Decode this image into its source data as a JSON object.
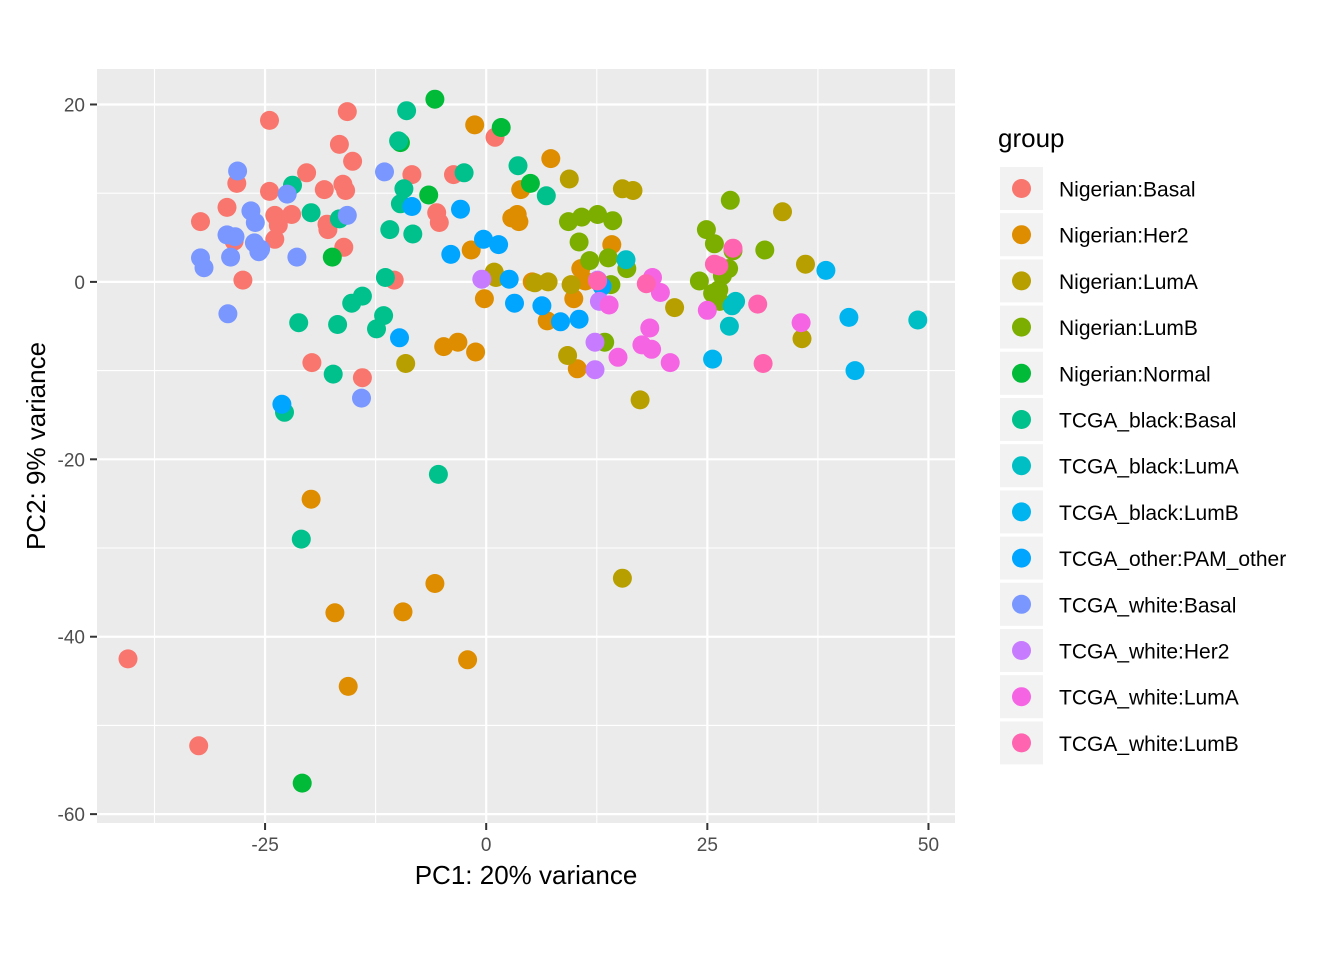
{
  "chart_data": {
    "type": "scatter",
    "xlabel": "PC1: 20% variance",
    "ylabel": "PC2: 9% variance",
    "xlim": [
      -44,
      53
    ],
    "ylim": [
      -61,
      24
    ],
    "x_ticks": [
      -25,
      0,
      25,
      50
    ],
    "x_tick_labels": [
      "-25",
      "0",
      "25",
      "50"
    ],
    "y_ticks": [
      -60,
      -40,
      -20,
      0,
      20
    ],
    "y_tick_labels": [
      "-60",
      "-40",
      "-20",
      "0",
      "20"
    ],
    "grid": true,
    "legend": {
      "title": "group",
      "position": "right"
    },
    "series": [
      {
        "name": "Nigerian:Basal",
        "color": "#F8766D",
        "points": [
          [
            -40.5,
            -42.5
          ],
          [
            -32.5,
            -52.3
          ],
          [
            -32.3,
            6.8
          ],
          [
            -29.3,
            8.4
          ],
          [
            -28.5,
            4.6
          ],
          [
            -28.2,
            11.1
          ],
          [
            -27.5,
            0.2
          ],
          [
            -24.5,
            18.2
          ],
          [
            -24.5,
            10.2
          ],
          [
            -23.9,
            4.8
          ],
          [
            -23.9,
            7.5
          ],
          [
            -23.5,
            6.4
          ],
          [
            -22,
            7.6
          ],
          [
            -20.3,
            12.3
          ],
          [
            -19.7,
            -9.1
          ],
          [
            -18.3,
            10.4
          ],
          [
            -18,
            6.5
          ],
          [
            -17.9,
            5.9
          ],
          [
            -16.6,
            15.5
          ],
          [
            -16.2,
            11
          ],
          [
            -16.1,
            3.9
          ],
          [
            -15.9,
            10.3
          ],
          [
            -15.7,
            19.2
          ],
          [
            -15.1,
            13.6
          ],
          [
            -14,
            -10.8
          ],
          [
            -10.4,
            0.2
          ],
          [
            -8.4,
            12.1
          ],
          [
            -5.6,
            7.8
          ],
          [
            -5.3,
            6.7
          ],
          [
            -3.7,
            12.1
          ],
          [
            1,
            16.3
          ]
        ]
      },
      {
        "name": "Nigerian:Her2",
        "color": "#DE8C00",
        "points": [
          [
            -19.8,
            -24.5
          ],
          [
            -17.1,
            -37.3
          ],
          [
            -15.6,
            -45.6
          ],
          [
            -9.4,
            -37.2
          ],
          [
            -5.8,
            -34
          ],
          [
            -4.8,
            -7.3
          ],
          [
            -3.2,
            -6.8
          ],
          [
            -2.1,
            -42.6
          ],
          [
            -1.7,
            3.6
          ],
          [
            -1.3,
            17.7
          ],
          [
            -1.2,
            -7.9
          ],
          [
            -0.2,
            -1.9
          ],
          [
            2.9,
            7.2
          ],
          [
            3.5,
            7.6
          ],
          [
            3.7,
            6.8
          ],
          [
            3.9,
            10.4
          ],
          [
            5.2,
            0
          ],
          [
            6.9,
            -4.4
          ],
          [
            7.3,
            13.9
          ],
          [
            9.9,
            -1.9
          ],
          [
            10.3,
            -9.8
          ],
          [
            10.7,
            1.5
          ],
          [
            11.2,
            0.1
          ],
          [
            14.2,
            4.2
          ]
        ]
      },
      {
        "name": "Nigerian:LumA",
        "color": "#B79F00",
        "points": [
          [
            -9.1,
            -9.2
          ],
          [
            0.9,
            1.1
          ],
          [
            1.1,
            0.5
          ],
          [
            5.5,
            -0.1
          ],
          [
            7,
            0
          ],
          [
            9.2,
            -8.3
          ],
          [
            9.4,
            11.6
          ],
          [
            9.6,
            -0.3
          ],
          [
            15.4,
            10.5
          ],
          [
            15.4,
            -33.4
          ],
          [
            16.6,
            10.3
          ],
          [
            17.4,
            -13.3
          ],
          [
            21.3,
            -2.9
          ],
          [
            33.5,
            7.9
          ],
          [
            35.7,
            -6.4
          ],
          [
            36.1,
            2
          ]
        ]
      },
      {
        "name": "Nigerian:LumB",
        "color": "#7CAE00",
        "points": [
          [
            9.3,
            6.8
          ],
          [
            10.5,
            4.5
          ],
          [
            10.8,
            7.3
          ],
          [
            11.7,
            2.4
          ],
          [
            12.6,
            7.6
          ],
          [
            13.4,
            -6.8
          ],
          [
            13.8,
            2.7
          ],
          [
            14.1,
            -0.3
          ],
          [
            14.3,
            6.9
          ],
          [
            15.9,
            1.5
          ],
          [
            24.1,
            0.1
          ],
          [
            24.9,
            5.9
          ],
          [
            25.6,
            -1.3
          ],
          [
            25.8,
            4.3
          ],
          [
            26.3,
            -0.9
          ],
          [
            26.4,
            -2.2
          ],
          [
            26.7,
            0.7
          ],
          [
            27.4,
            1.5
          ],
          [
            27.6,
            9.2
          ],
          [
            27.9,
            3.5
          ],
          [
            31.5,
            3.6
          ]
        ]
      },
      {
        "name": "Nigerian:Normal",
        "color": "#00BA38",
        "points": [
          [
            -20.8,
            -56.5
          ],
          [
            -17.4,
            2.8
          ],
          [
            -9.7,
            15.7
          ],
          [
            -6.5,
            9.8
          ],
          [
            -5.8,
            20.6
          ],
          [
            1.7,
            17.4
          ],
          [
            5,
            11.1
          ]
        ]
      },
      {
        "name": "TCGA_black:Basal",
        "color": "#00C08B",
        "points": [
          [
            -22.8,
            -14.7
          ],
          [
            -21.9,
            10.9
          ],
          [
            -21.2,
            -4.6
          ],
          [
            -20.9,
            -29
          ],
          [
            -19.8,
            7.8
          ],
          [
            -17.3,
            -10.4
          ],
          [
            -16.8,
            -4.8
          ],
          [
            -16.6,
            7.1
          ],
          [
            -15.2,
            -2.4
          ],
          [
            -14,
            -1.6
          ],
          [
            -12.4,
            -5.3
          ],
          [
            -11.6,
            -3.8
          ],
          [
            -11.4,
            0.5
          ],
          [
            -10.9,
            5.9
          ],
          [
            -9.9,
            15.9
          ],
          [
            -9.7,
            8.8
          ],
          [
            -9.3,
            10.5
          ],
          [
            -9,
            19.3
          ],
          [
            -8.3,
            5.4
          ],
          [
            -5.4,
            -21.7
          ],
          [
            -2.5,
            12.3
          ],
          [
            3.6,
            13.1
          ],
          [
            6.8,
            9.7
          ]
        ]
      },
      {
        "name": "TCGA_black:LumA",
        "color": "#00BFC4",
        "points": [
          [
            15.8,
            2.5
          ],
          [
            27.5,
            -5
          ],
          [
            27.8,
            -2.7
          ],
          [
            28.2,
            -2.2
          ],
          [
            48.8,
            -4.3
          ]
        ]
      },
      {
        "name": "TCGA_black:LumB",
        "color": "#00B4EF",
        "points": [
          [
            25.6,
            -8.7
          ],
          [
            38.4,
            1.3
          ],
          [
            41,
            -4
          ],
          [
            41.7,
            -10
          ]
        ]
      },
      {
        "name": "TCGA_other:PAM_other",
        "color": "#00A5FF",
        "points": [
          [
            -23.1,
            -13.8
          ],
          [
            -9.8,
            -6.3
          ],
          [
            -8.4,
            8.5
          ],
          [
            -4,
            3.1
          ],
          [
            -2.9,
            8.2
          ],
          [
            -0.3,
            4.8
          ],
          [
            1.4,
            4.2
          ],
          [
            2.6,
            0.3
          ],
          [
            3.2,
            -2.4
          ],
          [
            6.3,
            -2.7
          ],
          [
            8.4,
            -4.5
          ],
          [
            10.5,
            -4.2
          ],
          [
            13.1,
            -0.5
          ]
        ]
      },
      {
        "name": "TCGA_white:Basal",
        "color": "#7997FF",
        "points": [
          [
            -32.3,
            2.7
          ],
          [
            -31.9,
            1.6
          ],
          [
            -29.3,
            5.3
          ],
          [
            -29.2,
            -3.6
          ],
          [
            -28.9,
            2.8
          ],
          [
            -28.4,
            5.1
          ],
          [
            -28.1,
            12.5
          ],
          [
            -26.6,
            8
          ],
          [
            -26.2,
            4.4
          ],
          [
            -26.1,
            6.7
          ],
          [
            -25.7,
            3.4
          ],
          [
            -25.5,
            3.7
          ],
          [
            -22.5,
            9.9
          ],
          [
            -21.4,
            2.8
          ],
          [
            -15.7,
            7.5
          ],
          [
            -14.1,
            -13.1
          ],
          [
            -11.5,
            12.4
          ]
        ]
      },
      {
        "name": "TCGA_white:Her2",
        "color": "#C77CFF",
        "points": [
          [
            -0.5,
            0.3
          ],
          [
            12.3,
            -6.8
          ],
          [
            12.3,
            -9.9
          ],
          [
            12.6,
            0.2
          ],
          [
            12.8,
            -2.2
          ]
        ]
      },
      {
        "name": "TCGA_white:LumA",
        "color": "#F564E3",
        "points": [
          [
            13.9,
            -2.6
          ],
          [
            14.9,
            -8.5
          ],
          [
            17.6,
            -7.1
          ],
          [
            18.5,
            -5.2
          ],
          [
            18.7,
            -7.6
          ],
          [
            18.8,
            0.5
          ],
          [
            19.7,
            -1.2
          ],
          [
            20.8,
            -9.1
          ],
          [
            25,
            -3.2
          ],
          [
            35.6,
            -4.6
          ]
        ]
      },
      {
        "name": "TCGA_white:LumB",
        "color": "#FF64B0",
        "points": [
          [
            12.6,
            0.1
          ],
          [
            18.1,
            -0.2
          ],
          [
            25.8,
            2
          ],
          [
            26.3,
            1.8
          ],
          [
            27.9,
            3.8
          ],
          [
            30.7,
            -2.5
          ],
          [
            31.3,
            -9.2
          ]
        ]
      }
    ]
  }
}
